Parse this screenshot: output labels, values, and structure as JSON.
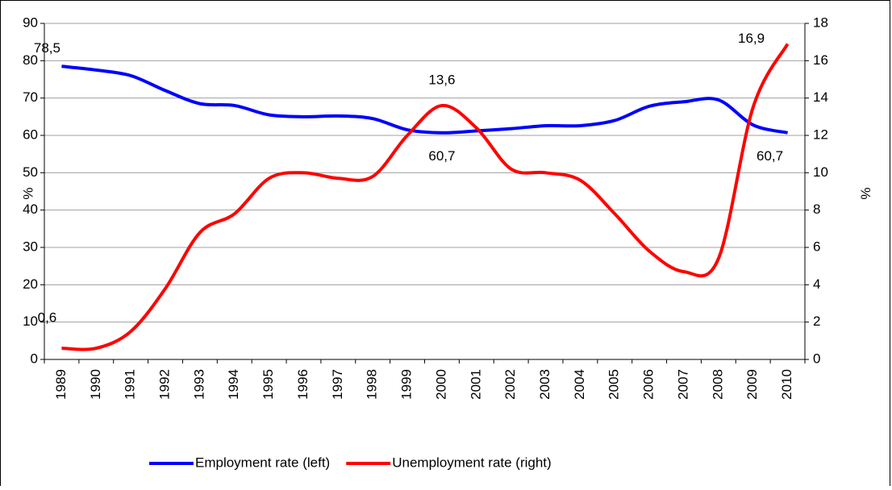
{
  "chart_data": {
    "type": "line",
    "categories": [
      "1989",
      "1990",
      "1991",
      "1992",
      "1993",
      "1994",
      "1995",
      "1996",
      "1997",
      "1998",
      "1999",
      "2000",
      "2001",
      "2002",
      "2003",
      "2004",
      "2005",
      "2006",
      "2007",
      "2008",
      "2009",
      "2010"
    ],
    "y_label": "%",
    "y2_label": "%",
    "ylim": [
      0,
      90
    ],
    "yticks": [
      0,
      10,
      20,
      30,
      40,
      50,
      60,
      70,
      80,
      90
    ],
    "y2lim": [
      0,
      18
    ],
    "y2ticks": [
      0,
      2,
      4,
      6,
      8,
      10,
      12,
      14,
      16,
      18
    ],
    "grid": true,
    "legend": "bottom",
    "series": [
      {
        "name": "Employment rate (left)",
        "color": "#0000ff",
        "axis": "y",
        "values": [
          78.5,
          77.5,
          76,
          72,
          68.5,
          68,
          65.5,
          65,
          65.2,
          64.5,
          61.5,
          60.7,
          61.2,
          61.8,
          62.6,
          62.6,
          64,
          67.8,
          69,
          69.5,
          62.8,
          60.7
        ],
        "value_labels": [
          "78,5",
          null,
          null,
          null,
          null,
          null,
          null,
          null,
          null,
          null,
          null,
          "60,7",
          null,
          null,
          null,
          null,
          null,
          null,
          null,
          null,
          null,
          "60,7"
        ]
      },
      {
        "name": "Unemployment rate (right)",
        "color": "#ff0000",
        "axis": "y2",
        "values": [
          0.6,
          0.6,
          1.5,
          3.8,
          6.8,
          7.8,
          9.7,
          10,
          9.7,
          9.8,
          12,
          13.6,
          12.4,
          10.2,
          10,
          9.6,
          7.8,
          5.8,
          4.7,
          5.4,
          13.5,
          16.9
        ],
        "value_labels": [
          "0,6",
          null,
          null,
          null,
          null,
          null,
          null,
          null,
          null,
          null,
          null,
          "13,6",
          null,
          null,
          null,
          null,
          null,
          null,
          null,
          null,
          null,
          "16,9"
        ]
      }
    ]
  }
}
